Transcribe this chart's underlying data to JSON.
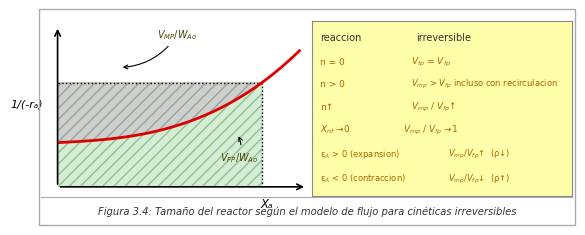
{
  "title": "Figura 3.4: Tamaño del reactor según el modelo de flujo para cinéticas irreversibles",
  "ylabel": "1/(-rₐ)",
  "xlabel": "Xₐ",
  "curve_color": "#dd0000",
  "fig_bg": "#ffffff",
  "box_bg": "#ffffaa",
  "box_border": "#888888",
  "caption_color": "#333333",
  "text_color_header": "#333333",
  "text_color_body": "#aa6600",
  "upper_hatch_color": "#cccccc",
  "lower_fill_color": "#d4edd4",
  "plot_bg": "#ffffff"
}
